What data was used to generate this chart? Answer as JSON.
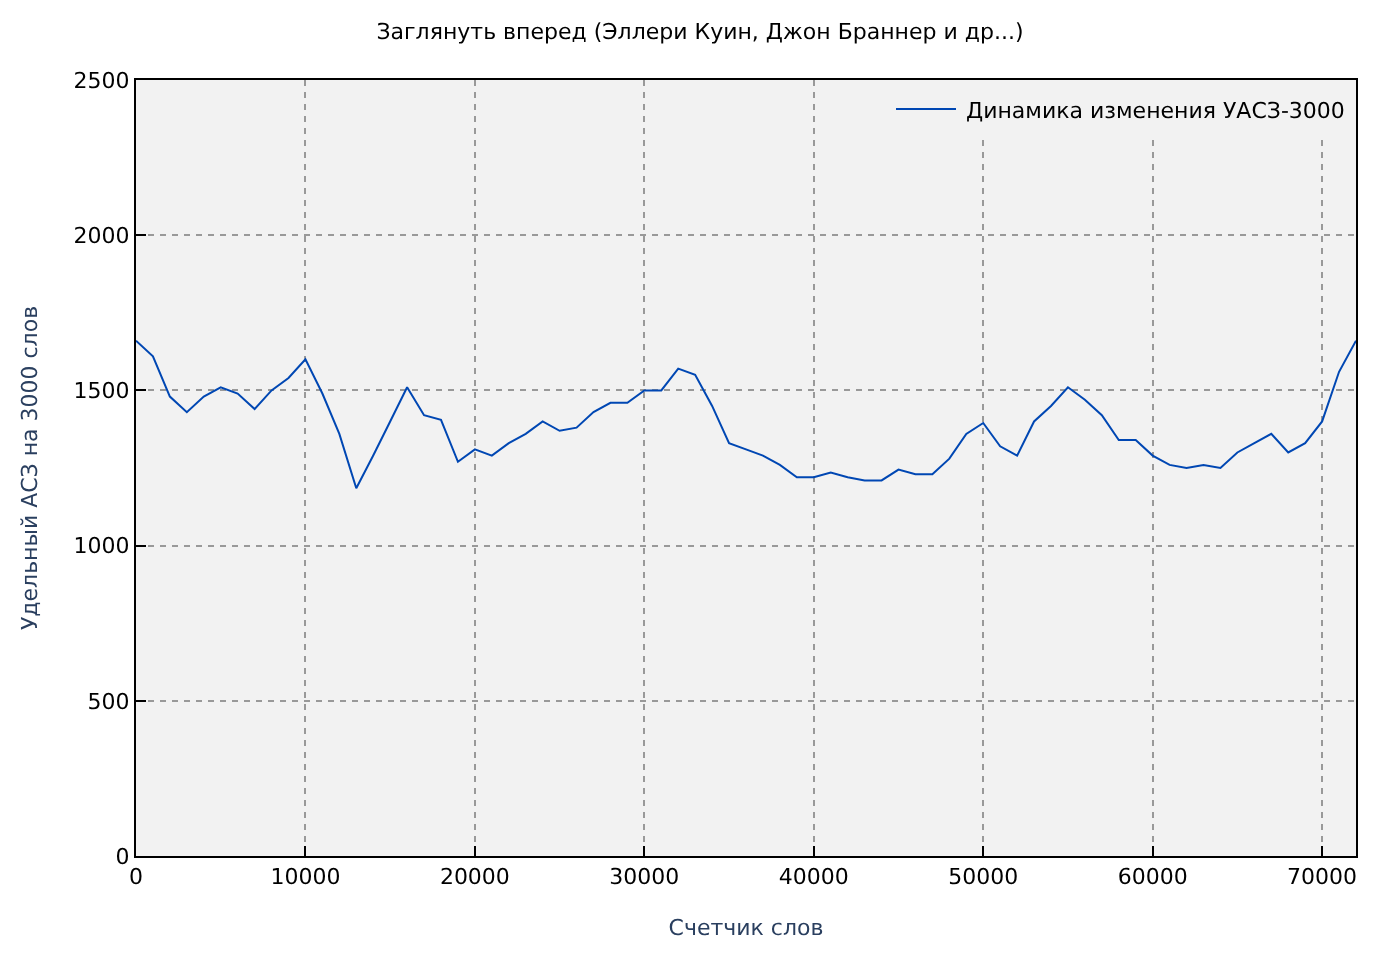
{
  "chart_data": {
    "type": "line",
    "title": "Заглянуть вперед (Эллери Куин, Джон Браннер и др...)",
    "xlabel": "Счетчик слов",
    "ylabel": "Удельный АСЗ на 3000 слов",
    "x": [
      0,
      1000,
      2000,
      3000,
      4000,
      5000,
      6000,
      7000,
      8000,
      9000,
      10000,
      11000,
      12000,
      13000,
      14000,
      15000,
      16000,
      17000,
      18000,
      19000,
      20000,
      21000,
      22000,
      23000,
      24000,
      25000,
      26000,
      27000,
      28000,
      29000,
      30000,
      31000,
      32000,
      33000,
      34000,
      35000,
      36000,
      37000,
      38000,
      39000,
      40000,
      41000,
      42000,
      43000,
      44000,
      45000,
      46000,
      47000,
      48000,
      49000,
      50000,
      51000,
      52000,
      53000,
      54000,
      55000,
      56000,
      57000,
      58000,
      59000,
      60000,
      61000,
      62000,
      63000,
      64000,
      65000,
      66000,
      67000,
      68000,
      69000,
      70000,
      71000,
      72000
    ],
    "series": [
      {
        "name": "Динамика изменения УАСЗ-3000",
        "color": "#0047b3",
        "values": [
          1660,
          1610,
          1480,
          1430,
          1480,
          1510,
          1490,
          1440,
          1500,
          1540,
          1600,
          1490,
          1360,
          1185,
          1290,
          1400,
          1510,
          1420,
          1405,
          1270,
          1310,
          1290,
          1330,
          1360,
          1400,
          1370,
          1380,
          1430,
          1460,
          1460,
          1500,
          1500,
          1570,
          1550,
          1450,
          1330,
          1310,
          1290,
          1260,
          1220,
          1220,
          1235,
          1220,
          1210,
          1210,
          1245,
          1230,
          1230,
          1280,
          1360,
          1395,
          1320,
          1290,
          1400,
          1450,
          1510,
          1470,
          1420,
          1340,
          1340,
          1290,
          1260,
          1250,
          1260,
          1250,
          1300,
          1330,
          1360,
          1300,
          1330,
          1400,
          1560,
          1660
        ]
      }
    ],
    "xlim": [
      0,
      72000
    ],
    "ylim": [
      0,
      2500
    ],
    "xticks": [
      0,
      10000,
      20000,
      30000,
      40000,
      50000,
      60000,
      70000
    ],
    "yticks": [
      0,
      500,
      1000,
      1500,
      2000,
      2500
    ],
    "grid": true,
    "legend": "top right",
    "marker": "none",
    "line_style": "solid"
  }
}
